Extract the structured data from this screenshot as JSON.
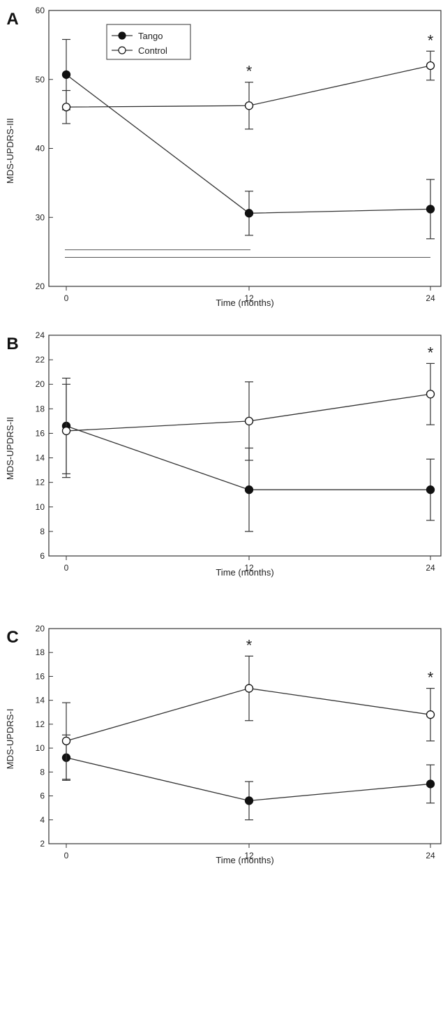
{
  "legend": {
    "tango": "Tango",
    "control": "Control"
  },
  "chart_data": [
    {
      "type": "line",
      "panel": "A",
      "xlabel": "Time (months)",
      "ylabel": "MDS-UPDRS-III",
      "x": [
        0,
        12,
        24
      ],
      "xticks": [
        "0",
        "12",
        "24"
      ],
      "ylim": [
        20,
        60
      ],
      "yticks": [
        "20",
        "30",
        "40",
        "50",
        "60"
      ],
      "series": [
        {
          "name": "Tango",
          "marker": "filled",
          "values": [
            50.7,
            30.6,
            31.2
          ],
          "err": [
            5.1,
            3.2,
            4.3
          ]
        },
        {
          "name": "Control",
          "marker": "open",
          "values": [
            46.0,
            46.2,
            52.0
          ],
          "err": [
            2.4,
            3.4,
            2.1
          ]
        }
      ],
      "significance_markers": [
        {
          "x": 12,
          "symbol": "*"
        },
        {
          "x": 24,
          "symbol": "*"
        }
      ],
      "bracket_lines": [
        {
          "y": 25.3,
          "x0": 0,
          "x1": 12
        },
        {
          "y": 24.2,
          "x0": 0,
          "x1": 24
        }
      ],
      "legend_position": "top-left",
      "grid": false
    },
    {
      "type": "line",
      "panel": "B",
      "xlabel": "Time (months)",
      "ylabel": "MDS-UPDRS-II",
      "x": [
        0,
        12,
        24
      ],
      "xticks": [
        "0",
        "12",
        "24"
      ],
      "ylim": [
        6,
        24
      ],
      "yticks": [
        "6",
        "8",
        "10",
        "12",
        "14",
        "16",
        "18",
        "20",
        "22",
        "24"
      ],
      "series": [
        {
          "name": "Tango",
          "marker": "filled",
          "values": [
            16.6,
            11.4,
            11.4
          ],
          "err": [
            3.9,
            3.4,
            2.5
          ]
        },
        {
          "name": "Control",
          "marker": "open",
          "values": [
            16.2,
            17.0,
            19.2
          ],
          "err": [
            3.8,
            3.2,
            2.5
          ]
        }
      ],
      "significance_markers": [
        {
          "x": 24,
          "symbol": "*"
        }
      ],
      "grid": false
    },
    {
      "type": "line",
      "panel": "C",
      "xlabel": "Time (months)",
      "ylabel": "MDS-UPDRS-I",
      "x": [
        0,
        12,
        24
      ],
      "xticks": [
        "0",
        "12",
        "24"
      ],
      "ylim": [
        2,
        20
      ],
      "yticks": [
        "2",
        "4",
        "6",
        "8",
        "10",
        "12",
        "14",
        "16",
        "18",
        "20"
      ],
      "series": [
        {
          "name": "Tango",
          "marker": "filled",
          "values": [
            9.2,
            5.6,
            7.0
          ],
          "err": [
            1.9,
            1.6,
            1.6
          ]
        },
        {
          "name": "Control",
          "marker": "open",
          "values": [
            10.6,
            15.0,
            12.8
          ],
          "err": [
            3.2,
            2.7,
            2.2
          ]
        }
      ],
      "significance_markers": [
        {
          "x": 12,
          "symbol": "*"
        },
        {
          "x": 24,
          "symbol": "*"
        }
      ],
      "grid": false
    }
  ]
}
